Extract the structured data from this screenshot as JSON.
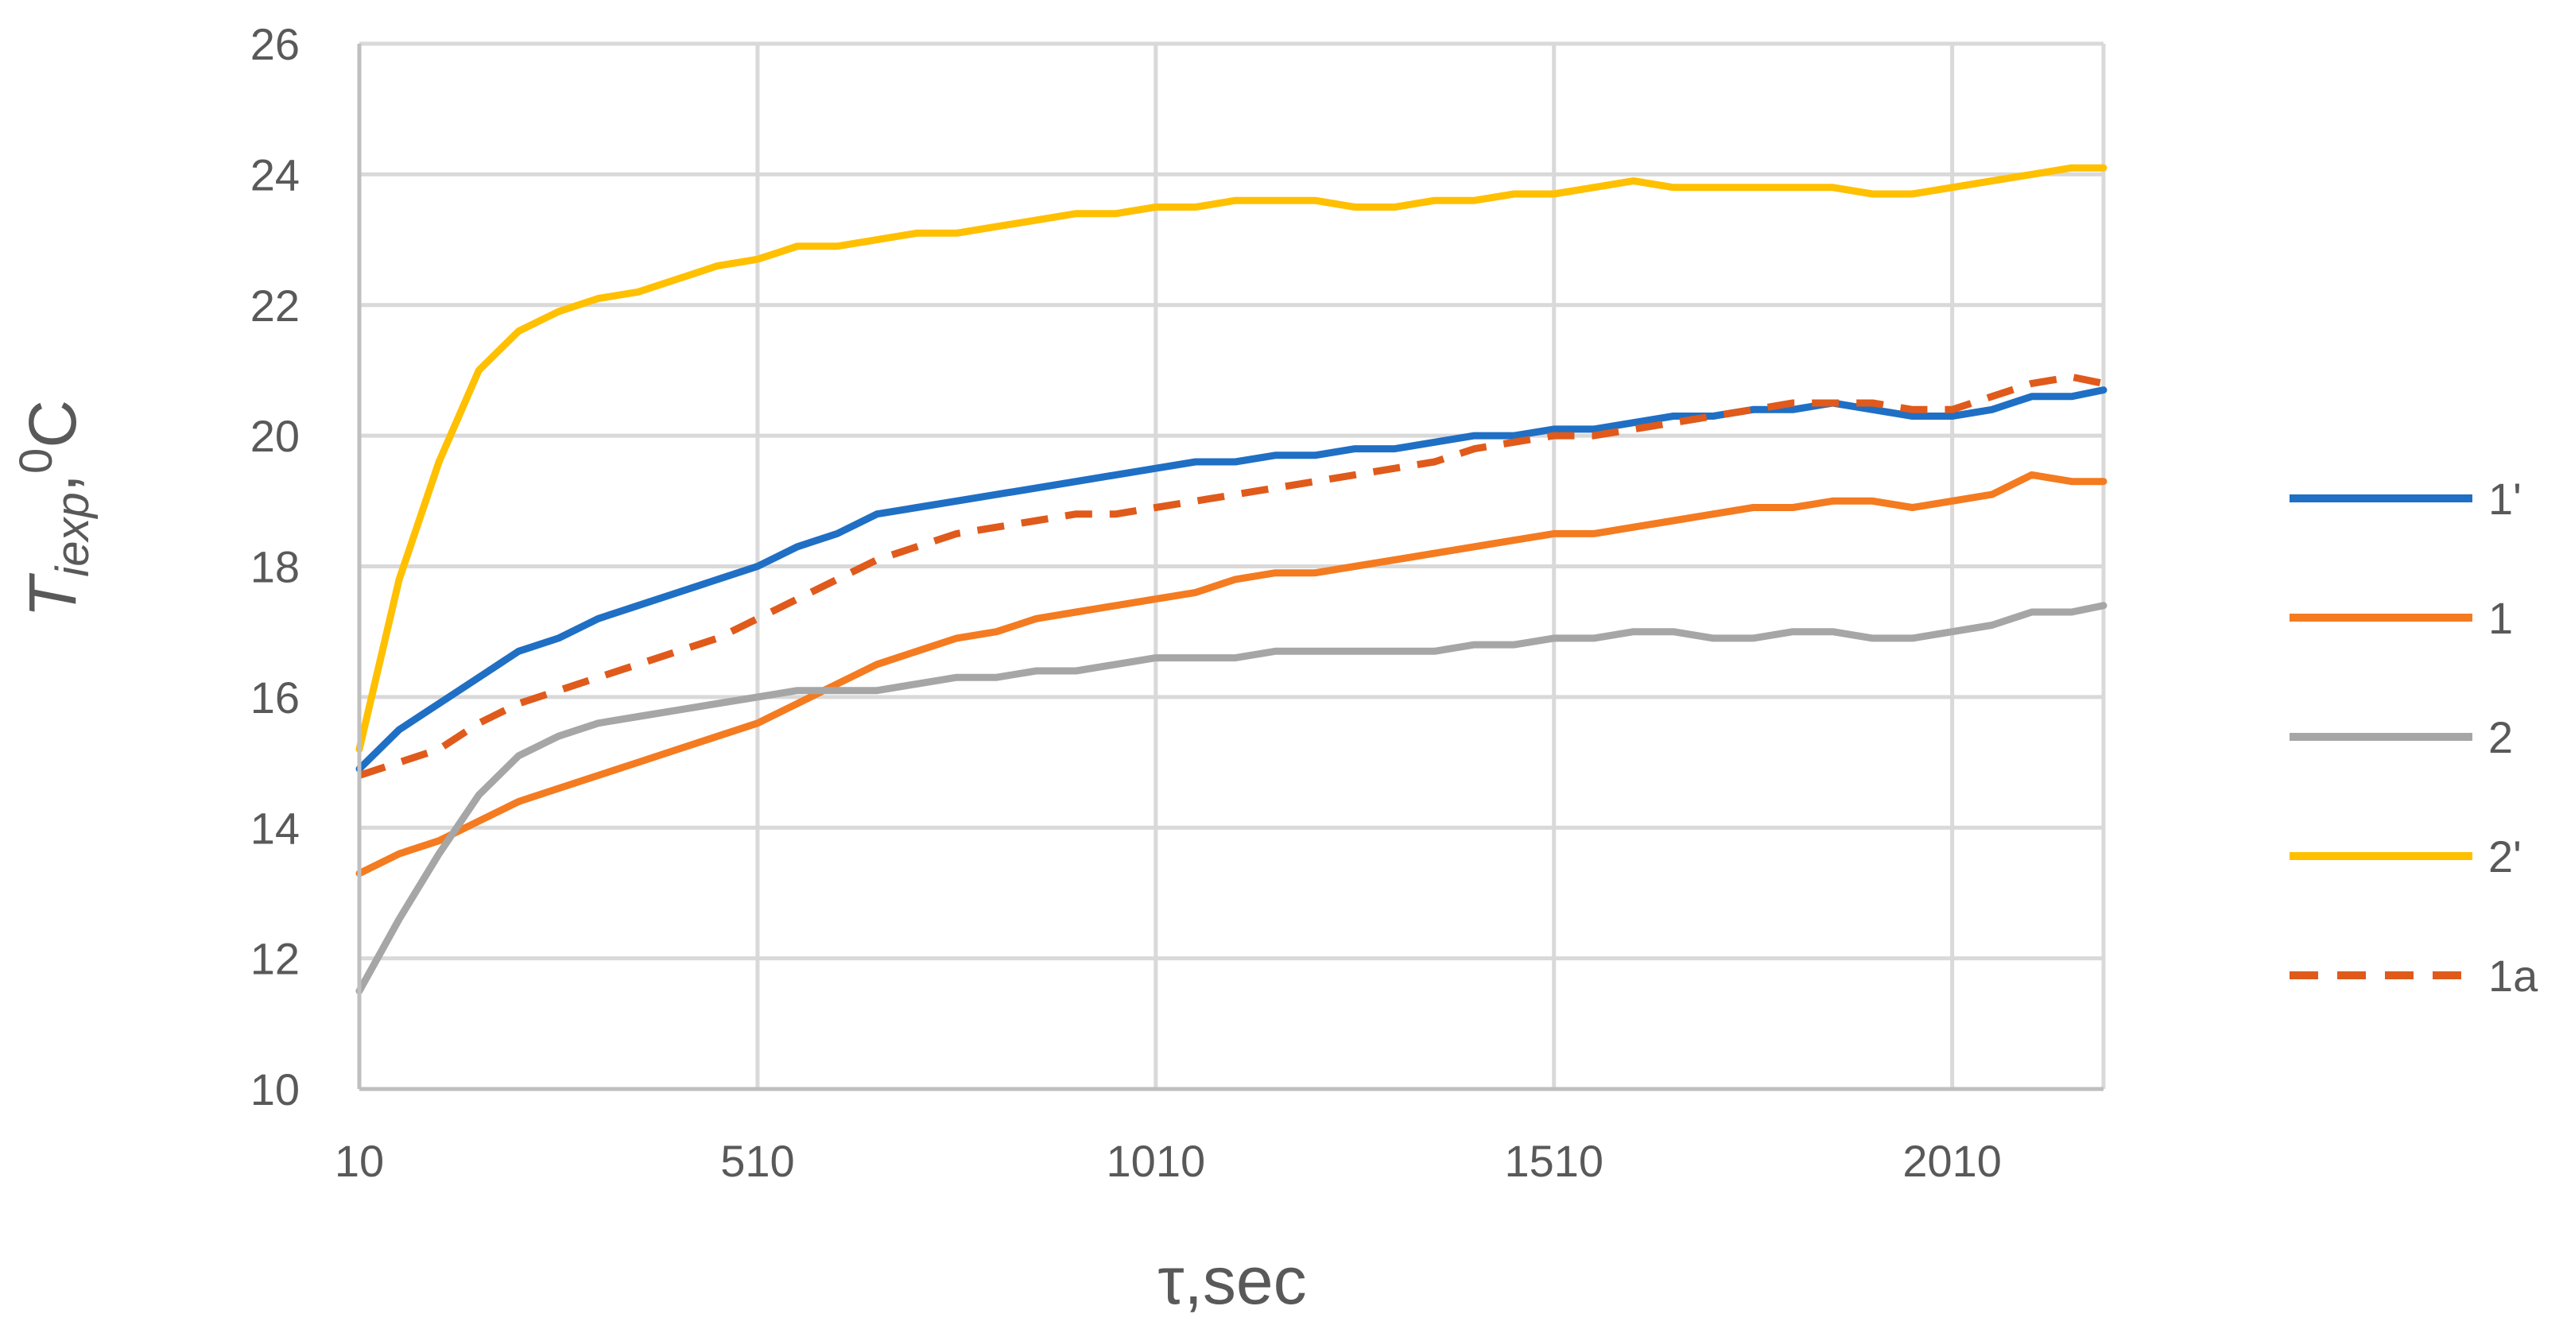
{
  "chart_data": {
    "type": "line",
    "title": "",
    "xlabel": "τ,sec",
    "ylabel": {
      "main": "T",
      "subscript": "iexp",
      "separator": ",",
      "superscript": "0",
      "unit": "C"
    },
    "xlim": [
      10,
      2200
    ],
    "ylim": [
      10,
      26
    ],
    "xticks": [
      10,
      510,
      1010,
      1510,
      2010
    ],
    "yticks": [
      10,
      12,
      14,
      16,
      18,
      20,
      22,
      24,
      26
    ],
    "grid": true,
    "legend_position": "right",
    "x": [
      10,
      60,
      110,
      160,
      210,
      260,
      310,
      360,
      410,
      460,
      510,
      560,
      610,
      660,
      710,
      760,
      810,
      860,
      910,
      960,
      1010,
      1060,
      1110,
      1160,
      1210,
      1260,
      1310,
      1360,
      1410,
      1460,
      1510,
      1560,
      1610,
      1660,
      1710,
      1760,
      1810,
      1860,
      1910,
      1960,
      2010,
      2060,
      2110,
      2160,
      2200
    ],
    "series": [
      {
        "name": "1'",
        "color": "#1f6fc5",
        "dash": false,
        "values": [
          14.9,
          15.5,
          15.9,
          16.3,
          16.7,
          16.9,
          17.2,
          17.4,
          17.6,
          17.8,
          18.0,
          18.3,
          18.5,
          18.8,
          18.9,
          19.0,
          19.1,
          19.2,
          19.3,
          19.4,
          19.5,
          19.6,
          19.6,
          19.7,
          19.7,
          19.8,
          19.8,
          19.9,
          20.0,
          20.0,
          20.1,
          20.1,
          20.2,
          20.3,
          20.3,
          20.4,
          20.4,
          20.5,
          20.4,
          20.3,
          20.3,
          20.4,
          20.6,
          20.6,
          20.7
        ]
      },
      {
        "name": "1",
        "color": "#f47b20",
        "dash": false,
        "values": [
          13.3,
          13.6,
          13.8,
          14.1,
          14.4,
          14.6,
          14.8,
          15.0,
          15.2,
          15.4,
          15.6,
          15.9,
          16.2,
          16.5,
          16.7,
          16.9,
          17.0,
          17.2,
          17.3,
          17.4,
          17.5,
          17.6,
          17.8,
          17.9,
          17.9,
          18.0,
          18.1,
          18.2,
          18.3,
          18.4,
          18.5,
          18.5,
          18.6,
          18.7,
          18.8,
          18.9,
          18.9,
          19.0,
          19.0,
          18.9,
          19.0,
          19.1,
          19.4,
          19.3,
          19.3
        ]
      },
      {
        "name": "2",
        "color": "#a6a6a6",
        "dash": false,
        "values": [
          11.5,
          12.6,
          13.6,
          14.5,
          15.1,
          15.4,
          15.6,
          15.7,
          15.8,
          15.9,
          16.0,
          16.1,
          16.1,
          16.1,
          16.2,
          16.3,
          16.3,
          16.4,
          16.4,
          16.5,
          16.6,
          16.6,
          16.6,
          16.7,
          16.7,
          16.7,
          16.7,
          16.7,
          16.8,
          16.8,
          16.9,
          16.9,
          17.0,
          17.0,
          16.9,
          16.9,
          17.0,
          17.0,
          16.9,
          16.9,
          17.0,
          17.1,
          17.3,
          17.3,
          17.4
        ]
      },
      {
        "name": "2'",
        "color": "#ffc000",
        "dash": false,
        "values": [
          15.2,
          17.8,
          19.6,
          21.0,
          21.6,
          21.9,
          22.1,
          22.2,
          22.4,
          22.6,
          22.7,
          22.9,
          22.9,
          23.0,
          23.1,
          23.1,
          23.2,
          23.3,
          23.4,
          23.4,
          23.5,
          23.5,
          23.6,
          23.6,
          23.6,
          23.5,
          23.5,
          23.6,
          23.6,
          23.7,
          23.7,
          23.8,
          23.9,
          23.8,
          23.8,
          23.8,
          23.8,
          23.8,
          23.7,
          23.7,
          23.8,
          23.9,
          24.0,
          24.1,
          24.1
        ]
      },
      {
        "name": "1a",
        "color": "#e05a1b",
        "dash": true,
        "values": [
          14.8,
          15.0,
          15.2,
          15.6,
          15.9,
          16.1,
          16.3,
          16.5,
          16.7,
          16.9,
          17.2,
          17.5,
          17.8,
          18.1,
          18.3,
          18.5,
          18.6,
          18.7,
          18.8,
          18.8,
          18.9,
          19.0,
          19.1,
          19.2,
          19.3,
          19.4,
          19.5,
          19.6,
          19.8,
          19.9,
          20.0,
          20.0,
          20.1,
          20.2,
          20.3,
          20.4,
          20.5,
          20.5,
          20.5,
          20.4,
          20.4,
          20.6,
          20.8,
          20.9,
          20.8
        ]
      }
    ]
  }
}
